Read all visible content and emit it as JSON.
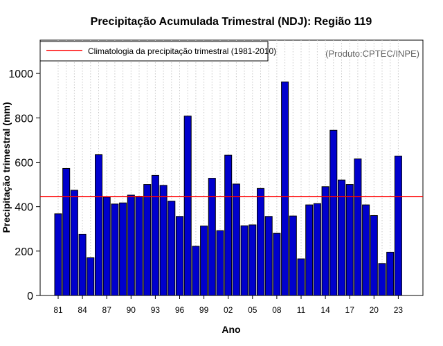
{
  "chart_data": {
    "type": "bar",
    "title": "Precipitação Acumulada Trimestral (NDJ): Região 119",
    "xlabel": "Ano",
    "ylabel": "Precipitação trimestral (mm)",
    "ylim": [
      0,
      1150
    ],
    "yticks": [
      0,
      200,
      400,
      600,
      800,
      1000
    ],
    "ytick_labels": [
      "0",
      "200",
      "400",
      "600",
      "800",
      "1000"
    ],
    "years": [
      1981,
      1982,
      1983,
      1984,
      1985,
      1986,
      1987,
      1988,
      1989,
      1990,
      1991,
      1992,
      1993,
      1994,
      1995,
      1996,
      1997,
      1998,
      1999,
      2000,
      2001,
      2002,
      2003,
      2004,
      2005,
      2006,
      2007,
      2008,
      2009,
      2010,
      2011,
      2012,
      2013,
      2014,
      2015,
      2016,
      2017,
      2018,
      2019,
      2020,
      2021,
      2022,
      2023
    ],
    "values": [
      368,
      572,
      474,
      276,
      170,
      634,
      443,
      412,
      417,
      452,
      447,
      500,
      541,
      496,
      425,
      356,
      808,
      222,
      313,
      528,
      292,
      632,
      502,
      314,
      318,
      482,
      356,
      280,
      962,
      358,
      165,
      408,
      414,
      490,
      744,
      520,
      500,
      615,
      408,
      360,
      144,
      195,
      628
    ],
    "xtick_positions": [
      1981,
      1984,
      1987,
      1990,
      1993,
      1996,
      1999,
      2002,
      2005,
      2008,
      2011,
      2014,
      2017,
      2020,
      2023
    ],
    "xtick_labels": [
      "81",
      "84",
      "87",
      "90",
      "93",
      "96",
      "99",
      "02",
      "05",
      "08",
      "11",
      "14",
      "17",
      "20",
      "23"
    ],
    "climatology": {
      "label": "Climatologia da precipitação trimestral (1981-2010)",
      "value": 445,
      "color": "#ff0000"
    },
    "bar_color": "#0000cd",
    "grid": "vertical dotted, one per year",
    "legend_position": "top-left",
    "credit": "(Produto:CPTEC/INPE)"
  }
}
